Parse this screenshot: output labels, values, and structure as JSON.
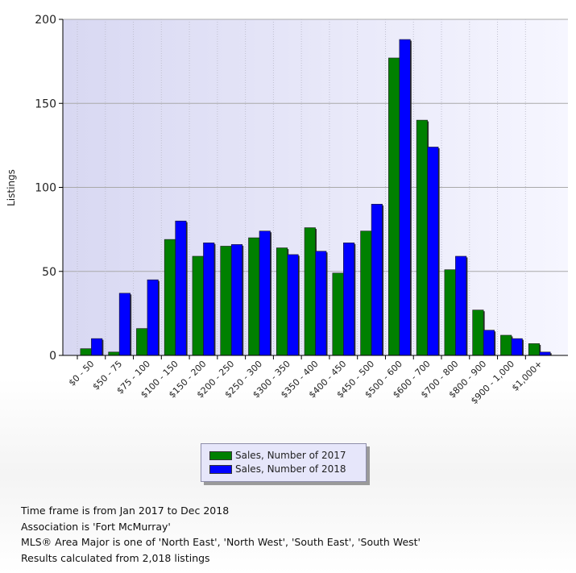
{
  "chart_data": {
    "type": "bar",
    "title": "",
    "xlabel": "",
    "ylabel": "Listings",
    "ylim": [
      0,
      200
    ],
    "yticks": [
      0,
      50,
      100,
      150,
      200
    ],
    "grid": true,
    "legend_position": "bottom-center",
    "categories": [
      "$0 - 50",
      "$50 - 75",
      "$75 - 100",
      "$100 - 150",
      "$150 - 200",
      "$200 - 250",
      "$250 - 300",
      "$300 - 350",
      "$350 - 400",
      "$400 - 450",
      "$450 - 500",
      "$500 - 600",
      "$600 - 700",
      "$700 - 800",
      "$800 - 900",
      "$900 - 1,000",
      "$1,000+"
    ],
    "series": [
      {
        "name": "Sales, Number of 2017",
        "color": "#008000",
        "values": [
          4,
          2,
          16,
          69,
          59,
          65,
          70,
          64,
          76,
          49,
          74,
          177,
          140,
          51,
          27,
          12,
          7
        ]
      },
      {
        "name": "Sales, Number of 2018",
        "color": "#0000ff",
        "values": [
          10,
          37,
          45,
          80,
          67,
          66,
          74,
          60,
          62,
          67,
          90,
          188,
          124,
          59,
          15,
          10,
          2
        ]
      }
    ]
  },
  "footer": {
    "line1": "Time frame is from Jan 2017 to Dec 2018",
    "line2": "Association is 'Fort McMurray'",
    "line3": "MLS® Area Major is one of 'North East', 'North West', 'South East', 'South West'",
    "line4": "Results calculated from 2,018 listings"
  }
}
